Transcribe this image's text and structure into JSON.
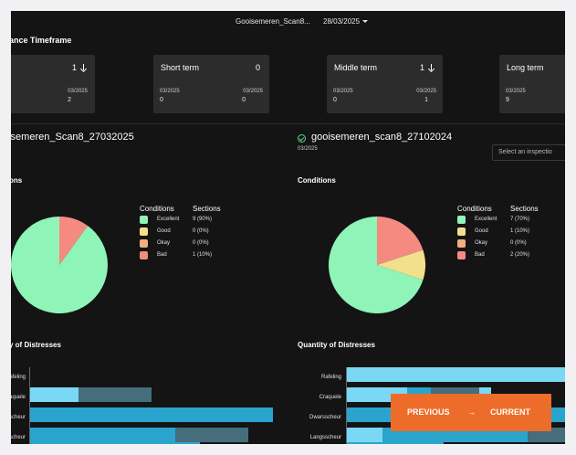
{
  "header": {
    "project": "Gooisemeren_Scan8...",
    "date": "28/03/2025"
  },
  "timeframe": {
    "title": "ance Timeframe",
    "cards": [
      {
        "title": "",
        "value": "1",
        "has_arrow": true,
        "date_left": "",
        "date_right": "03/2025",
        "num_left": "",
        "num_right": "2"
      },
      {
        "title": "Short term",
        "value": "0",
        "has_arrow": false,
        "date_left": "03/2025",
        "date_right": "03/2025",
        "num_left": "0",
        "num_right": "0"
      },
      {
        "title": "Middle term",
        "value": "1",
        "has_arrow": true,
        "date_left": "03/2025",
        "date_right": "03/2025",
        "num_left": "0",
        "num_right": "1"
      },
      {
        "title": "Long term",
        "value": "",
        "has_arrow": false,
        "date_left": "03/2025",
        "date_right": "",
        "num_left": "9",
        "num_right": ""
      }
    ]
  },
  "colors": {
    "excellent": "#8ef4b8",
    "good": "#f2e08c",
    "okay": "#f2b07c",
    "bad": "#f58a80",
    "bar_light": "#7ad8f4",
    "bar_mid": "#2aa4cc",
    "bar_dark": "#456d7b",
    "accent": "#ee6c2a",
    "check": "#5fd68a"
  },
  "panels": [
    {
      "title": "oisemeren_Scan8_27032025",
      "date": "",
      "conditions_label": "ons",
      "distress_label": "y of Distresses",
      "legend": {
        "head_conditions": "Conditions",
        "head_sections": "Sections",
        "rows": [
          {
            "name": "Excellent",
            "value": "9 (90%)"
          },
          {
            "name": "Good",
            "value": "0 (0%)"
          },
          {
            "name": "Okay",
            "value": "0 (0%)"
          },
          {
            "name": "Bad",
            "value": "1 (10%)"
          }
        ]
      },
      "bar_labels": [
        "afeling",
        "raquele",
        "scheur",
        "scheur"
      ]
    },
    {
      "title": "gooisemeren_scan8_27102024",
      "date": "03/2025",
      "select_placeholder": "Select an inspectio",
      "conditions_label": "Conditions",
      "distress_label": "Quantity of Distresses",
      "legend": {
        "head_conditions": "Conditions",
        "head_sections": "Sections",
        "rows": [
          {
            "name": "Excellent",
            "value": "7 (70%)"
          },
          {
            "name": "Good",
            "value": "1 (10%)"
          },
          {
            "name": "Okay",
            "value": "0 (0%)"
          },
          {
            "name": "Bad",
            "value": "2 (20%)"
          }
        ]
      },
      "bar_labels": [
        "Rafeling",
        "Craquele",
        "Dwarsscheur",
        "Langsscheur"
      ]
    }
  ],
  "chart_data": [
    {
      "type": "pie",
      "categories": [
        "Excellent",
        "Good",
        "Okay",
        "Bad"
      ],
      "values": [
        9,
        0,
        0,
        1
      ]
    },
    {
      "type": "pie",
      "categories": [
        "Excellent",
        "Good",
        "Okay",
        "Bad"
      ],
      "values": [
        7,
        1,
        0,
        2
      ]
    }
  ],
  "compare_button": {
    "previous": "PREVIOUS",
    "arrow": "→",
    "current": "CURRENT"
  }
}
